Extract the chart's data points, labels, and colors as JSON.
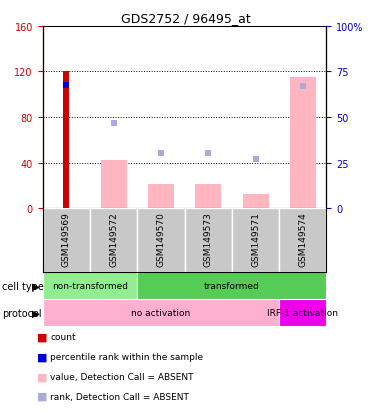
{
  "title": "GDS2752 / 96495_at",
  "samples": [
    "GSM149569",
    "GSM149572",
    "GSM149570",
    "GSM149573",
    "GSM149571",
    "GSM149574"
  ],
  "count_values": [
    120,
    0,
    0,
    0,
    0,
    0
  ],
  "percentile_values": [
    108,
    0,
    0,
    0,
    0,
    0
  ],
  "value_absent": [
    0,
    42,
    21,
    21,
    12,
    115
  ],
  "rank_absent": [
    0,
    75,
    48,
    48,
    43,
    107
  ],
  "left_yticks": [
    0,
    40,
    80,
    120,
    160
  ],
  "right_ylabels": [
    "0",
    "25",
    "50",
    "75",
    "100%"
  ],
  "right_ytick_positions": [
    0,
    40,
    80,
    120,
    160
  ],
  "bg_color": "#ffffff",
  "count_color": "#CC0000",
  "percentile_color": "#0000CC",
  "value_absent_color": "#FFB6C1",
  "rank_absent_color": "#AAAADD",
  "sample_bg": "#C8C8C8",
  "cell_type_spans": [
    [
      0,
      2,
      "#90EE90",
      "non-transformed"
    ],
    [
      2,
      6,
      "#55CC55",
      "transformed"
    ]
  ],
  "protocol_spans": [
    [
      0,
      5,
      "#FFB0D0",
      "no activation"
    ],
    [
      5,
      6,
      "#EE00EE",
      "IRF-1 activation"
    ]
  ],
  "legend_items": [
    {
      "color": "#CC0000",
      "label": "count"
    },
    {
      "color": "#0000CC",
      "label": "percentile rank within the sample"
    },
    {
      "color": "#FFB6C1",
      "label": "value, Detection Call = ABSENT"
    },
    {
      "color": "#AAAADD",
      "label": "rank, Detection Call = ABSENT"
    }
  ]
}
